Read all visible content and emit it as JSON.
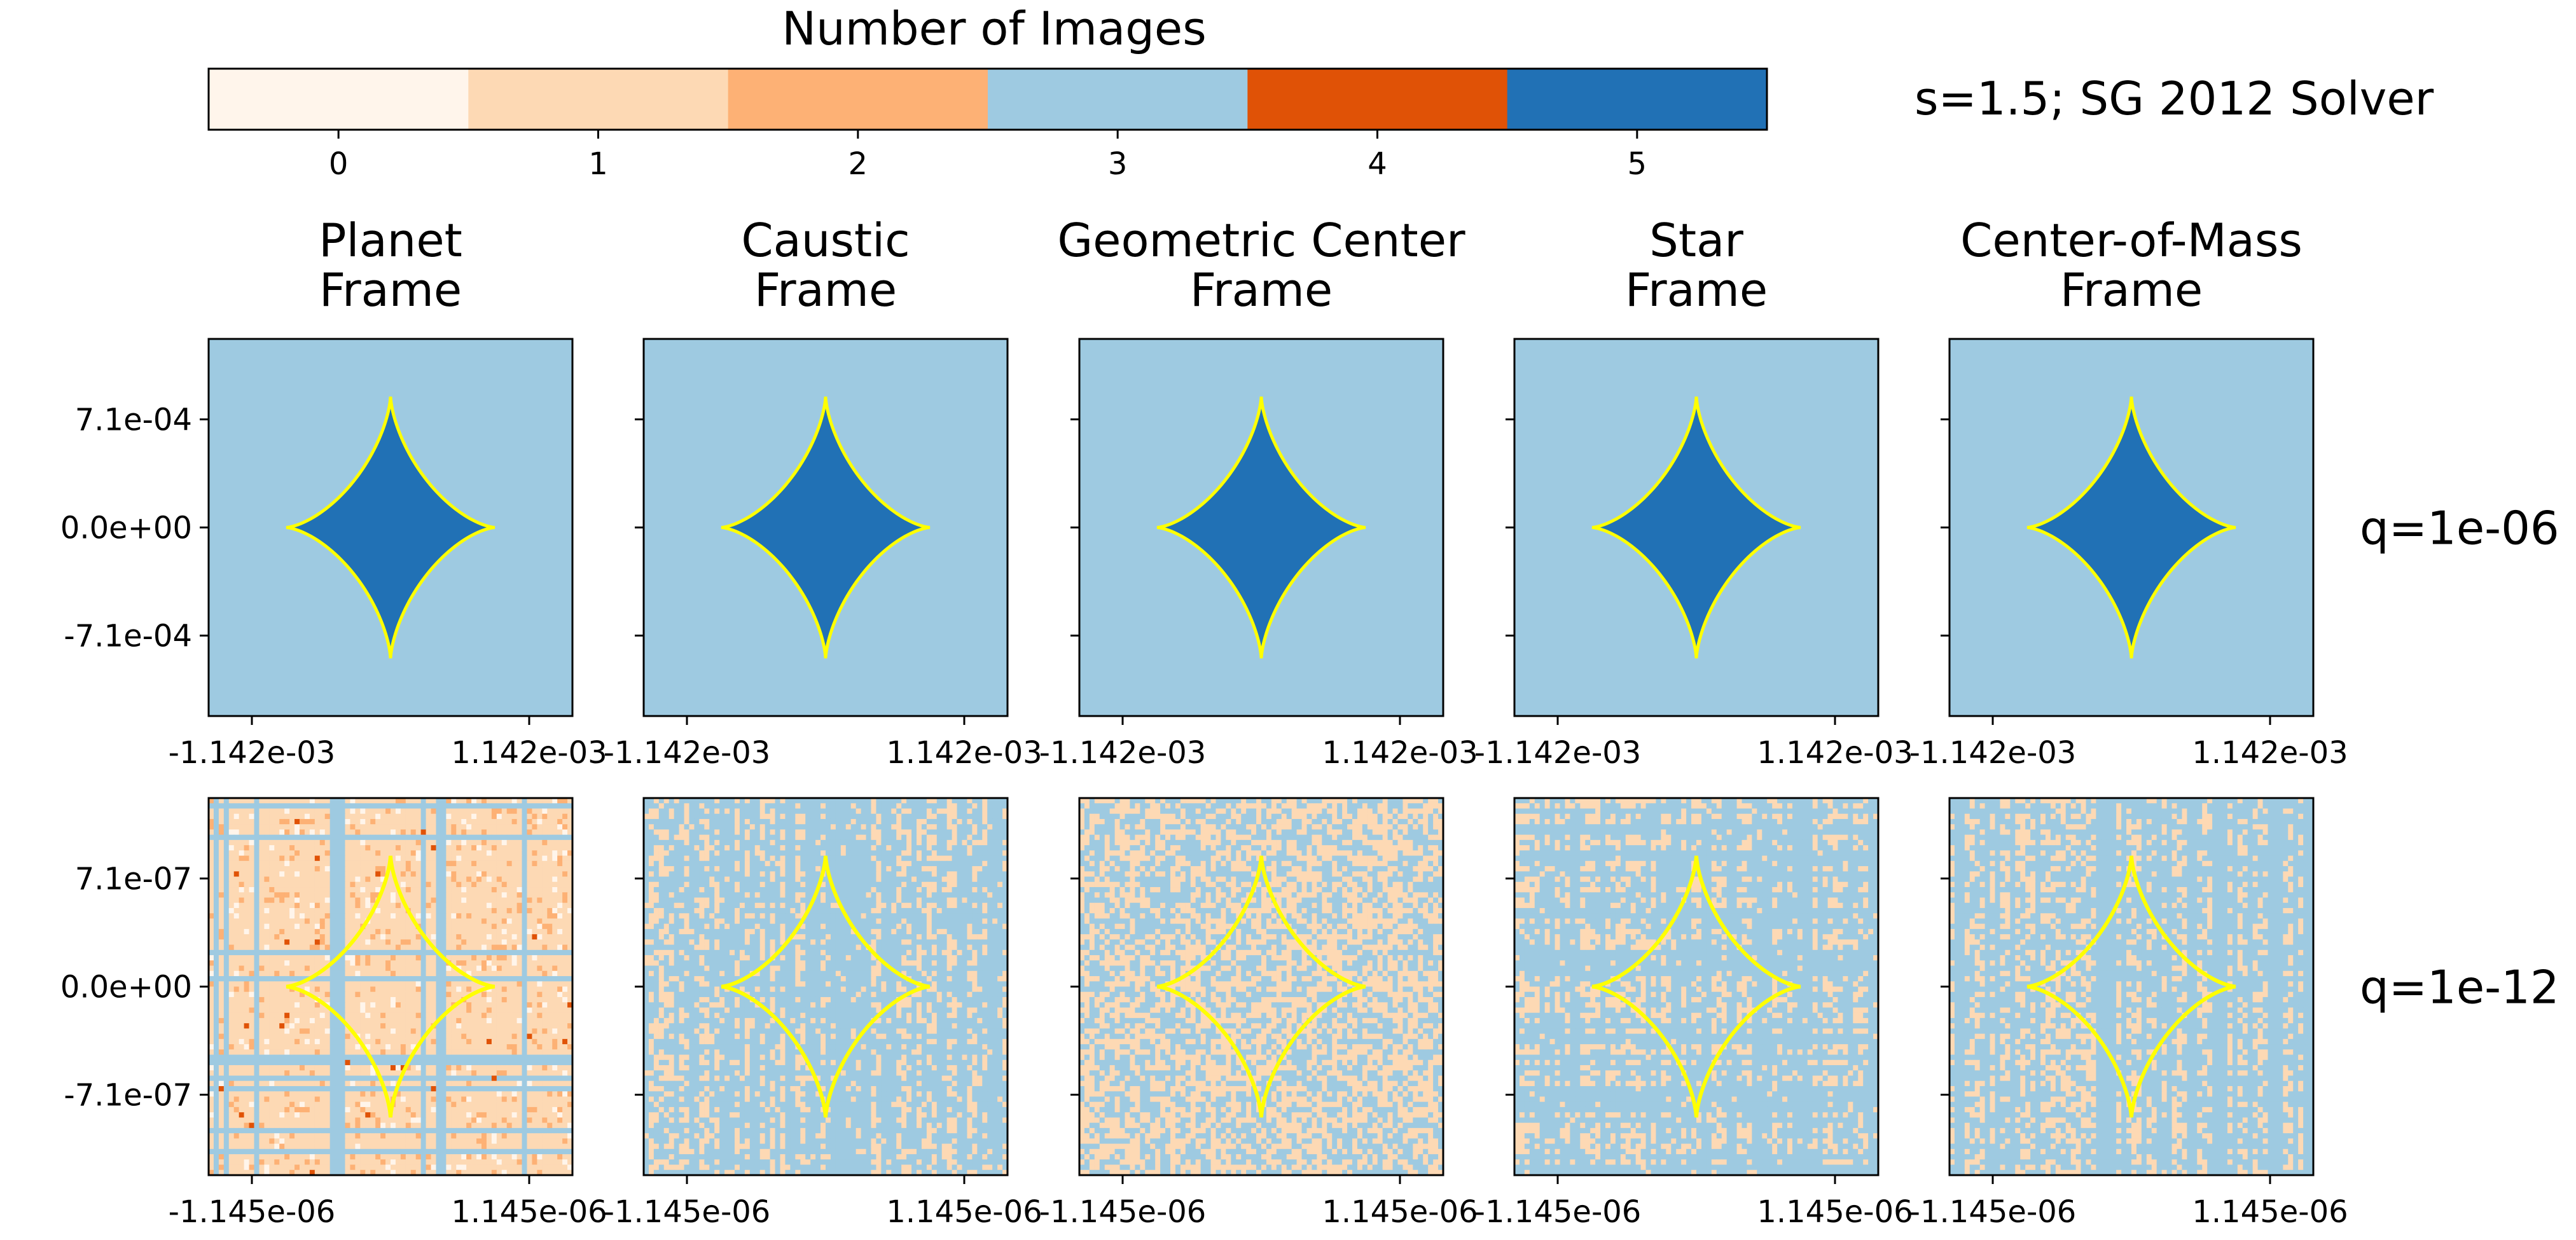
{
  "chart_data": {
    "type": "heatmap",
    "title": "Number of Images",
    "annotation": "s=1.5;  SG 2012 Solver",
    "colorbar": {
      "label": "Number of Images",
      "ticks": [
        "0",
        "1",
        "2",
        "3",
        "4",
        "5"
      ],
      "colors": [
        "#fff5eb",
        "#fdd9b4",
        "#fdb175",
        "#9ecae1",
        "#e05206",
        "#2171b5"
      ]
    },
    "columns": [
      "Planet\nFrame",
      "Caustic\nFrame",
      "Geometric Center\nFrame",
      "Star\nFrame",
      "Center-of-Mass\nFrame"
    ],
    "rows": [
      {
        "label": "q=1e-06",
        "yticks": [
          "7.1e-04",
          "0.0e+00",
          "-7.1e-04"
        ],
        "ytick_values": [
          0.00071,
          0.0,
          -0.00071
        ],
        "xticks": [
          "-1.142e-03",
          "1.142e-03"
        ],
        "xtick_values": [
          -0.001142,
          0.001142
        ],
        "patterns": [
          "clean",
          "clean",
          "clean",
          "clean",
          "clean"
        ]
      },
      {
        "label": "q=1e-12",
        "yticks": [
          "7.1e-07",
          "0.0e+00",
          "-7.1e-07"
        ],
        "ytick_values": [
          7.1e-07,
          0.0,
          -7.1e-07
        ],
        "xticks": [
          "-1.145e-06",
          "1.145e-06"
        ],
        "xtick_values": [
          -1.145e-06,
          1.145e-06
        ],
        "patterns": [
          "orange-dominant",
          "blue-vertical",
          "speckle",
          "grid",
          "blue-grid"
        ]
      }
    ],
    "background_value": 3,
    "inside_caustic_value": 5,
    "caustic_color": "#ffff00",
    "caustic_shape": "astroid"
  }
}
